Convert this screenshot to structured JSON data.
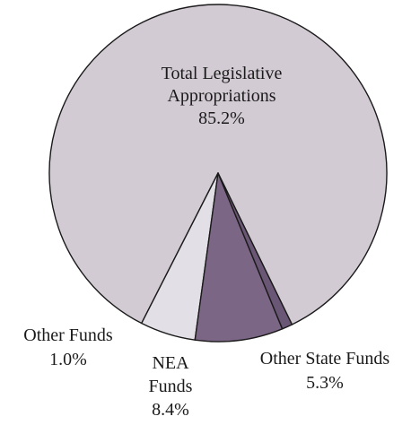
{
  "chart_data": {
    "type": "pie",
    "title": "",
    "slices": [
      {
        "label_lines": [
          "Total Legislative",
          "Appropriations"
        ],
        "value": 85.2,
        "value_label": "85.2%",
        "color": "#d3cbd4"
      },
      {
        "label_lines": [
          "Other State Funds"
        ],
        "value": 5.3,
        "value_label": "5.3%",
        "color": "#e3dfe6"
      },
      {
        "label_lines": [
          "NEA",
          "Funds"
        ],
        "value": 8.4,
        "value_label": "8.4%",
        "color": "#7c6685"
      },
      {
        "label_lines": [
          "Other Funds"
        ],
        "value": 1.0,
        "value_label": "1.0%",
        "color": "#6a5675"
      }
    ],
    "legend": "none",
    "outline_color": "#1a1a1a"
  }
}
